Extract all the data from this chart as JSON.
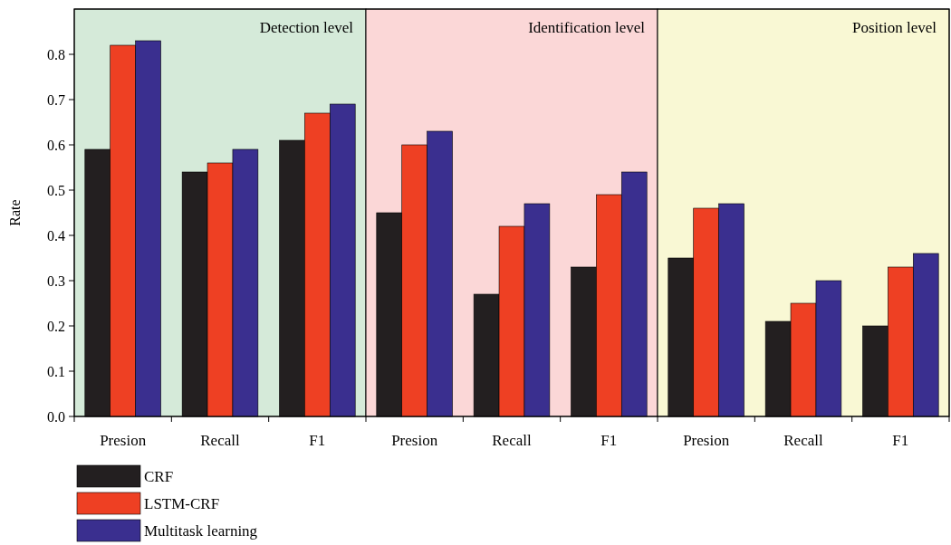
{
  "chart_data": {
    "type": "bar",
    "ylabel": "Rate",
    "categories": [
      "Presion",
      "Recall",
      "F1",
      "Presion",
      "Recall",
      "F1",
      "Presion",
      "Recall",
      "F1"
    ],
    "series": [
      {
        "name": "CRF",
        "color": "#231f20",
        "values": [
          0.59,
          0.54,
          0.61,
          0.45,
          0.27,
          0.33,
          0.35,
          0.21,
          0.2
        ]
      },
      {
        "name": "LSTM-CRF",
        "color": "#ee4023",
        "values": [
          0.82,
          0.56,
          0.67,
          0.6,
          0.42,
          0.49,
          0.46,
          0.25,
          0.33
        ]
      },
      {
        "name": "Multitask learning",
        "color": "#3a2f8f",
        "values": [
          0.83,
          0.59,
          0.69,
          0.63,
          0.47,
          0.54,
          0.47,
          0.3,
          0.36
        ]
      }
    ],
    "ylim": [
      0,
      0.9
    ],
    "yticks": [
      {
        "value": 0,
        "label": "0.0"
      },
      0.1,
      0.2,
      0.3,
      0.4,
      0.5,
      0.6,
      0.7,
      0.8
    ],
    "annotations": [
      "Detection level",
      "Identification level",
      "Position level"
    ],
    "grid": false,
    "legend": "bottom left"
  }
}
